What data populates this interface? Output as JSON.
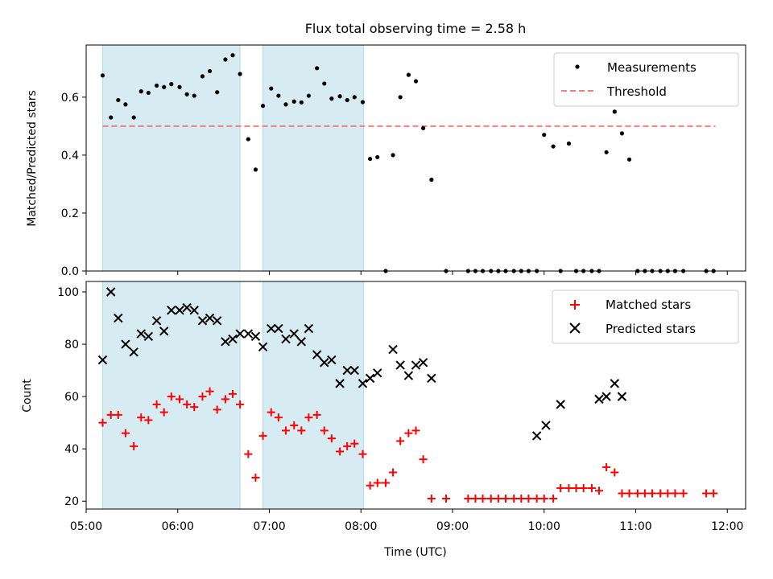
{
  "chart_data": [
    {
      "type": "scatter",
      "title": "Flux total observing time = 2.58 h",
      "xlabel": "",
      "ylabel": "Matched/Predicted stars",
      "xlim": [
        5.0,
        12.2
      ],
      "ylim": [
        0.0,
        0.78
      ],
      "yticks": [
        0.0,
        0.2,
        0.4,
        0.6
      ],
      "ytick_labels": [
        "0.0",
        "0.2",
        "0.4",
        "0.6"
      ],
      "xticks": [
        5,
        6,
        7,
        8,
        9,
        10,
        11,
        12
      ],
      "grid": false,
      "legend_position": "top-right",
      "highlight_spans": [
        [
          5.18,
          6.68
        ],
        [
          6.93,
          8.03
        ]
      ],
      "highlight_color": "#add8e6",
      "series": [
        {
          "name": "Measurements",
          "marker": "dot",
          "color": "#000000",
          "x": [
            5.18,
            5.27,
            5.35,
            5.43,
            5.52,
            5.6,
            5.68,
            5.77,
            5.85,
            5.93,
            6.02,
            6.1,
            6.18,
            6.27,
            6.35,
            6.43,
            6.52,
            6.6,
            6.68,
            6.77,
            6.85,
            6.93,
            7.02,
            7.1,
            7.18,
            7.27,
            7.35,
            7.43,
            7.52,
            7.6,
            7.68,
            7.77,
            7.85,
            7.93,
            8.02,
            8.1,
            8.18,
            8.27,
            8.35,
            8.43,
            8.52,
            8.6,
            8.68,
            8.77,
            8.93,
            9.17,
            9.25,
            9.33,
            9.42,
            9.5,
            9.58,
            9.67,
            9.75,
            9.83,
            9.92,
            10.0,
            10.1,
            10.18,
            10.27,
            10.35,
            10.43,
            10.52,
            10.6,
            10.68,
            10.77,
            10.85,
            10.93,
            11.02,
            11.1,
            11.18,
            11.27,
            11.35,
            11.43,
            11.52,
            11.77,
            11.85
          ],
          "y": [
            0.675,
            0.53,
            0.59,
            0.575,
            0.53,
            0.62,
            0.615,
            0.64,
            0.635,
            0.645,
            0.635,
            0.61,
            0.605,
            0.672,
            0.69,
            0.617,
            0.73,
            0.745,
            0.68,
            0.455,
            0.35,
            0.57,
            0.63,
            0.605,
            0.575,
            0.585,
            0.582,
            0.605,
            0.7,
            0.647,
            0.595,
            0.603,
            0.59,
            0.6,
            0.583,
            0.387,
            0.393,
            0.0,
            0.4,
            0.6,
            0.677,
            0.655,
            0.493,
            0.315,
            0.0,
            0.0,
            0.0,
            0.0,
            0.0,
            0.0,
            0.0,
            0.0,
            0.0,
            0.0,
            0.0,
            0.47,
            0.43,
            0.0,
            0.44,
            0.0,
            0.0,
            0.0,
            0.0,
            0.41,
            0.55,
            0.475,
            0.385,
            0.0,
            0.0,
            0.0,
            0.0,
            0.0,
            0.0,
            0.0,
            0.0,
            0.0
          ]
        },
        {
          "name": "Threshold",
          "marker": "dashed-line",
          "color": "#f08080",
          "x": [
            5.18,
            11.87
          ],
          "y": [
            0.5,
            0.5
          ]
        }
      ]
    },
    {
      "type": "scatter",
      "title": "",
      "xlabel": "Time (UTC)",
      "ylabel": "Count",
      "xlim": [
        5.0,
        12.2
      ],
      "ylim": [
        17,
        104
      ],
      "yticks": [
        20,
        40,
        60,
        80,
        100
      ],
      "ytick_labels": [
        "20",
        "40",
        "60",
        "80",
        "100"
      ],
      "xticks": [
        5,
        6,
        7,
        8,
        9,
        10,
        11,
        12
      ],
      "xtick_labels": [
        "05:00",
        "06:00",
        "07:00",
        "08:00",
        "09:00",
        "10:00",
        "11:00",
        "12:00"
      ],
      "grid": false,
      "legend_position": "top-right",
      "highlight_spans": [
        [
          5.18,
          6.68
        ],
        [
          6.93,
          8.03
        ]
      ],
      "highlight_color": "#add8e6",
      "series": [
        {
          "name": "Matched stars",
          "marker": "plus",
          "color": "#ff0000",
          "x": [
            5.18,
            5.27,
            5.35,
            5.43,
            5.52,
            5.6,
            5.68,
            5.77,
            5.85,
            5.93,
            6.02,
            6.1,
            6.18,
            6.27,
            6.35,
            6.43,
            6.52,
            6.6,
            6.68,
            6.77,
            6.85,
            6.93,
            7.02,
            7.1,
            7.18,
            7.27,
            7.35,
            7.43,
            7.52,
            7.6,
            7.68,
            7.77,
            7.85,
            7.93,
            8.02,
            8.1,
            8.18,
            8.27,
            8.35,
            8.43,
            8.52,
            8.6,
            8.68,
            8.77,
            8.93,
            9.17,
            9.25,
            9.33,
            9.42,
            9.5,
            9.58,
            9.67,
            9.75,
            9.83,
            9.92,
            10.0,
            10.1,
            10.18,
            10.27,
            10.35,
            10.43,
            10.52,
            10.6,
            10.68,
            10.77,
            10.85,
            10.93,
            11.02,
            11.1,
            11.18,
            11.27,
            11.35,
            11.43,
            11.52,
            11.77,
            11.85
          ],
          "y": [
            50,
            53,
            53,
            46,
            41,
            52,
            51,
            57,
            54,
            60,
            59,
            57,
            56,
            60,
            62,
            55,
            59,
            61,
            57,
            38,
            29,
            45,
            54,
            52,
            47,
            49,
            47,
            52,
            53,
            47,
            44,
            39,
            41,
            42,
            38,
            26,
            27,
            27,
            31,
            43,
            46,
            47,
            36,
            21,
            21,
            21,
            21,
            21,
            21,
            21,
            21,
            21,
            21,
            21,
            21,
            21,
            21,
            25,
            25,
            25,
            25,
            25,
            24,
            33,
            31,
            23,
            23,
            23,
            23,
            23,
            23,
            23,
            23,
            23,
            23,
            23
          ]
        },
        {
          "name": "Predicted stars",
          "marker": "x",
          "color": "#000000",
          "x": [
            5.18,
            5.27,
            5.35,
            5.43,
            5.52,
            5.6,
            5.68,
            5.77,
            5.85,
            5.93,
            6.02,
            6.1,
            6.18,
            6.27,
            6.35,
            6.43,
            6.52,
            6.6,
            6.68,
            6.77,
            6.85,
            6.93,
            7.02,
            7.1,
            7.18,
            7.27,
            7.35,
            7.43,
            7.52,
            7.6,
            7.68,
            7.77,
            7.85,
            7.93,
            8.02,
            8.1,
            8.18,
            8.35,
            8.43,
            8.52,
            8.6,
            8.68,
            8.77,
            9.92,
            10.02,
            10.18,
            10.6,
            10.68,
            10.77,
            10.85
          ],
          "y": [
            74,
            100,
            90,
            80,
            77,
            84,
            83,
            89,
            85,
            93,
            93,
            94,
            93,
            89,
            90,
            89,
            81,
            82,
            84,
            84,
            83,
            79,
            86,
            86,
            82,
            84,
            81,
            86,
            76,
            73,
            74,
            65,
            70,
            70,
            65,
            67,
            69,
            78,
            72,
            68,
            72,
            73,
            67,
            45,
            49,
            57,
            59,
            60,
            65,
            60
          ]
        }
      ]
    }
  ]
}
